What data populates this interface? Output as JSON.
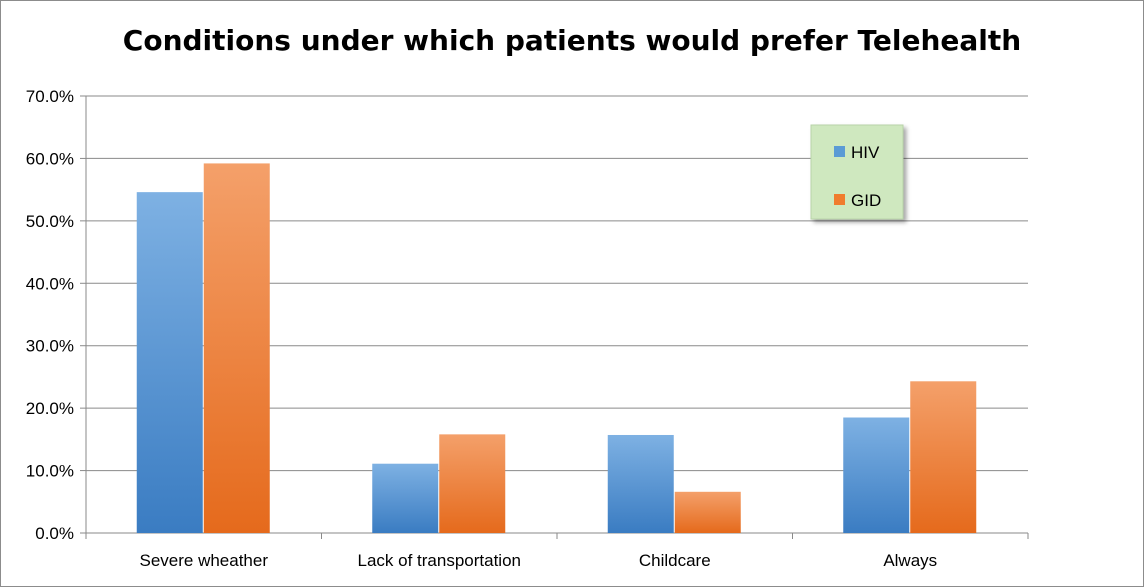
{
  "chart_data": {
    "type": "bar",
    "title": "Conditions under which patients would prefer Telehealth",
    "xlabel": "",
    "ylabel": "",
    "categories": [
      "Severe wheather",
      "Lack of transportation",
      "Childcare",
      "Always"
    ],
    "series": [
      {
        "name": "HIV",
        "values": [
          54.6,
          11.1,
          15.7,
          18.5
        ],
        "color": "#5b9bd5"
      },
      {
        "name": "GID",
        "values": [
          59.2,
          15.8,
          6.6,
          24.3
        ],
        "color": "#f07c2e"
      }
    ],
    "ylim": [
      0,
      70
    ],
    "yticks": [
      "0.0%",
      "10.0%",
      "20.0%",
      "30.0%",
      "40.0%",
      "50.0%",
      "60.0%",
      "70.0%"
    ],
    "grid": true,
    "legend_position": "top-right"
  }
}
